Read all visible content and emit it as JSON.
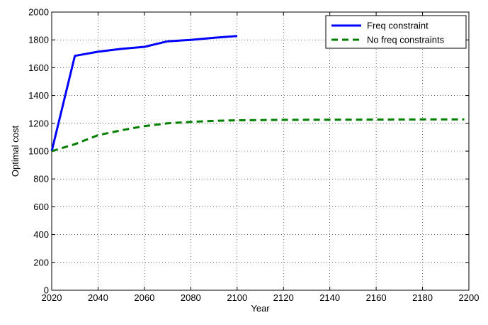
{
  "chart_data": {
    "type": "line",
    "title": "",
    "xlabel": "Year",
    "ylabel": "Optimal cost",
    "xlim": [
      2020,
      2200
    ],
    "ylim": [
      0,
      2000
    ],
    "xticks": [
      2020,
      2040,
      2060,
      2080,
      2100,
      2120,
      2140,
      2160,
      2180,
      2200
    ],
    "yticks": [
      0,
      200,
      400,
      600,
      800,
      1000,
      1200,
      1400,
      1600,
      1800,
      2000
    ],
    "grid": true,
    "legend_position": "top-right",
    "series": [
      {
        "name": "Freq constraint",
        "color": "#0000ff",
        "style": "solid",
        "x": [
          2020,
          2030,
          2040,
          2050,
          2060,
          2070,
          2080,
          2090,
          2100
        ],
        "y": [
          1000,
          1685,
          1715,
          1735,
          1750,
          1790,
          1800,
          1815,
          1828
        ]
      },
      {
        "name": "No freq constraints",
        "color": "#007f00",
        "style": "dashed",
        "x": [
          2020,
          2030,
          2040,
          2050,
          2060,
          2070,
          2080,
          2090,
          2100,
          2120,
          2140,
          2160,
          2180,
          2198
        ],
        "y": [
          1000,
          1050,
          1115,
          1150,
          1180,
          1200,
          1210,
          1218,
          1222,
          1225,
          1226,
          1227,
          1228,
          1228
        ]
      }
    ]
  }
}
